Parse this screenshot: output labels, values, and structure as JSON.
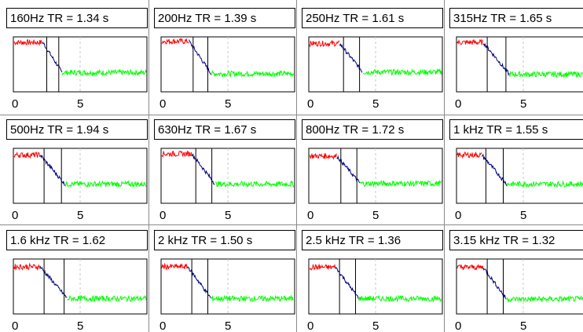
{
  "chart_data": {
    "type": "line",
    "colors": {
      "early": "#ff0000",
      "decay": "#000080",
      "tail": "#00ff00",
      "marker": "#000000",
      "guide": "#c8c8c8"
    },
    "x_tick_labels": [
      "0",
      "5"
    ],
    "xlim": [
      0,
      10
    ],
    "guide_x": 5,
    "panels": [
      {
        "title": "160Hz  TR = 1.34 s",
        "markers": [
          2.5,
          3.4
        ],
        "level_hi": 0.9,
        "level_lo": 0.35
      },
      {
        "title": "200Hz  TR = 1.39 s",
        "markers": [
          2.4,
          3.5
        ],
        "level_hi": 0.92,
        "level_lo": 0.33
      },
      {
        "title": "250Hz  TR = 1.61 s",
        "markers": [
          2.6,
          3.8
        ],
        "level_hi": 0.88,
        "level_lo": 0.36
      },
      {
        "title": "315Hz  TR = 1.65 s",
        "markers": [
          2.3,
          3.7
        ],
        "level_hi": 0.9,
        "level_lo": 0.32
      },
      {
        "title": "500Hz  TR = 1.94 s",
        "markers": [
          2.3,
          3.6
        ],
        "level_hi": 0.88,
        "level_lo": 0.35
      },
      {
        "title": "630Hz  TR = 1.67 s",
        "markers": [
          2.6,
          3.8
        ],
        "level_hi": 0.9,
        "level_lo": 0.35
      },
      {
        "title": "800Hz  TR = 1.72 s",
        "markers": [
          2.4,
          3.6
        ],
        "level_hi": 0.86,
        "level_lo": 0.36
      },
      {
        "title": "1 kHz  TR = 1.55 s",
        "markers": [
          2.2,
          3.5
        ],
        "level_hi": 0.88,
        "level_lo": 0.35
      },
      {
        "title": "1.6 kHz  TR = 1.62",
        "markers": [
          2.3,
          3.8
        ],
        "level_hi": 0.86,
        "level_lo": 0.28
      },
      {
        "title": "2 kHz  TR = 1.50 s",
        "markers": [
          2.3,
          3.5
        ],
        "level_hi": 0.86,
        "level_lo": 0.28
      },
      {
        "title": "2.5 kHz  TR = 1.36",
        "markers": [
          2.3,
          3.5
        ],
        "level_hi": 0.85,
        "level_lo": 0.28
      },
      {
        "title": "3.15 kHz  TR = 1.32",
        "markers": [
          2.3,
          3.5
        ],
        "level_hi": 0.85,
        "level_lo": 0.27
      }
    ]
  }
}
